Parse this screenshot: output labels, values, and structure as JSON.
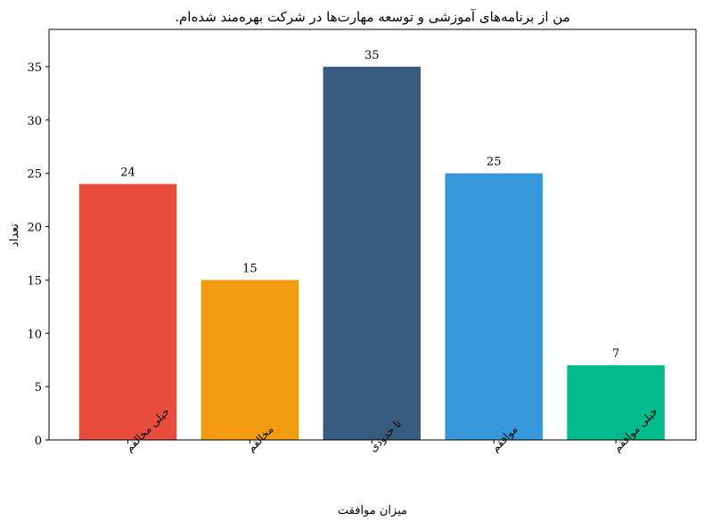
{
  "chart_data": {
    "type": "bar",
    "title": "من از برنامه‌های آموزشی و توسعه مهارت‌ها در شرکت بهره‌مند شده‌ام.",
    "xlabel": "میزان موافقت",
    "ylabel": "تعداد",
    "categories": [
      "خیلی مخالفم",
      "مخالفم",
      "تا حدودی",
      "موافقم",
      "خیلی موافقم"
    ],
    "values": [
      24,
      15,
      35,
      25,
      7
    ],
    "colors": [
      "#e74c3c",
      "#f39c12",
      "#365b7e",
      "#3498db",
      "#00bc8c"
    ],
    "ylim": [
      0,
      38.5
    ],
    "yticks": [
      0,
      5,
      10,
      15,
      20,
      25,
      30,
      35
    ],
    "grid": false,
    "legend": "none"
  }
}
